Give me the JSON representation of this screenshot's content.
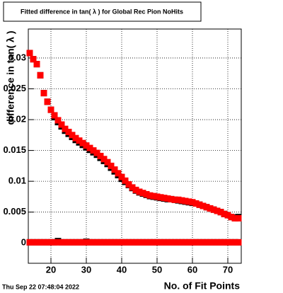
{
  "chart_data": {
    "type": "scatter",
    "title": "Fitted difference in tan( λ ) for Global Rec Pion NoHits",
    "x_label": "No. of Fit Points",
    "y_label": "difference in tan( λ )",
    "timestamp": "Thu Sep 22 07:48:04 2022",
    "grid": true,
    "xlim": [
      13.6,
      73.8
    ],
    "ylim": [
      -0.0033,
      0.0347
    ],
    "xticks": [
      20,
      30,
      40,
      50,
      60,
      70
    ],
    "yticks": [
      0,
      0.005,
      0.01,
      0.015,
      0.02,
      0.025,
      0.03
    ],
    "x": [
      14,
      15,
      16,
      17,
      18,
      19,
      20,
      21,
      22,
      23,
      24,
      25,
      26,
      27,
      28,
      29,
      30,
      31,
      32,
      33,
      34,
      35,
      36,
      37,
      38,
      39,
      40,
      41,
      42,
      43,
      44,
      45,
      46,
      47,
      48,
      49,
      50,
      51,
      52,
      53,
      54,
      55,
      56,
      57,
      58,
      59,
      60,
      61,
      62,
      63,
      64,
      65,
      66,
      67,
      68,
      69,
      70,
      71,
      72,
      73
    ],
    "series": [
      {
        "name": "black-upper",
        "color": "#000000",
        "values": [
          0.0308,
          0.0298,
          0.029,
          0.0272,
          0.0243,
          0.0229,
          0.0216,
          0.0204,
          0.0196,
          0.0189,
          0.0182,
          0.0177,
          0.0172,
          0.0167,
          0.0163,
          0.0159,
          0.0155,
          0.0151,
          0.0147,
          0.0143,
          0.0138,
          0.0133,
          0.0128,
          0.0122,
          0.0116,
          0.011,
          0.0104,
          0.0099,
          0.0094,
          0.0089,
          0.0085,
          0.0082,
          0.008,
          0.0078,
          0.0076,
          0.0075,
          0.0074,
          0.0073,
          0.0072,
          0.0071,
          0.0071,
          0.007,
          0.0069,
          0.0068,
          0.0067,
          0.0066,
          0.0065,
          0.0064,
          0.0062,
          0.006,
          0.0058,
          0.0056,
          0.0054,
          0.0052,
          0.005,
          0.0047,
          0.0045,
          0.0042,
          0.0041,
          0.0042
        ]
      },
      {
        "name": "black-zero",
        "color": "#000000",
        "values": [
          0.0001,
          0.0001,
          0.0001,
          0.0001,
          0.0001,
          0.0001,
          0.0001,
          0.0001,
          0.0003,
          0.0001,
          0.0001,
          0.0001,
          0.0001,
          0.0001,
          0.0001,
          0.0001,
          0.0002,
          0.0001,
          0.0001,
          0.0001,
          0.0001,
          0.0001,
          0.0001,
          0.0001,
          0.0001,
          0.0001,
          0.0001,
          0.0001,
          0.0001,
          0.0001,
          0.0001,
          0.0001,
          0.0001,
          0.0001,
          0.0001,
          0.0001,
          0.0001,
          0.0001,
          0.0001,
          0.0001,
          0.0001,
          0.0001,
          0.0001,
          0.0001,
          0.0001,
          0.0001,
          0.0001,
          0.0001,
          0.0001,
          0.0001,
          0.0001,
          0.0001,
          0.0001,
          0.0001,
          0.0001,
          0.0001,
          0.0001,
          0.0001,
          0.0001,
          0.0001
        ]
      },
      {
        "name": "red-upper",
        "color": "#ff0000",
        "values": [
          0.0308,
          0.0298,
          0.029,
          0.0272,
          0.0243,
          0.0229,
          0.0216,
          0.0207,
          0.0199,
          0.0192,
          0.0185,
          0.018,
          0.0175,
          0.017,
          0.0166,
          0.0162,
          0.0158,
          0.0154,
          0.015,
          0.0146,
          0.0141,
          0.0136,
          0.0131,
          0.0125,
          0.0119,
          0.0113,
          0.0107,
          0.0101,
          0.0095,
          0.009,
          0.0086,
          0.0083,
          0.0081,
          0.0079,
          0.0077,
          0.0076,
          0.0075,
          0.0074,
          0.0073,
          0.0072,
          0.0071,
          0.007,
          0.007,
          0.0069,
          0.0068,
          0.0067,
          0.0066,
          0.0064,
          0.0062,
          0.006,
          0.0058,
          0.0056,
          0.0054,
          0.0052,
          0.005,
          0.0047,
          0.0045,
          0.0042,
          0.004,
          0.004
        ]
      },
      {
        "name": "red-zero",
        "color": "#ff0000",
        "values": [
          0.0001,
          0.0001,
          0.0001,
          0.0001,
          0.0001,
          0.0001,
          0.0001,
          0.0001,
          0.0001,
          0.0001,
          0.0001,
          0.0001,
          0.0001,
          0.0001,
          0.0001,
          0.0001,
          0.0001,
          0.0001,
          0.0001,
          0.0001,
          0.0001,
          0.0001,
          0.0001,
          0.0001,
          0.0001,
          0.0001,
          0.0001,
          0.0001,
          0.0001,
          0.0001,
          0.0001,
          0.0001,
          0.0001,
          0.0001,
          0.0001,
          0.0001,
          0.0001,
          0.0001,
          0.0001,
          0.0001,
          0.0001,
          0.0001,
          0.0001,
          0.0001,
          0.0001,
          0.0001,
          0.0001,
          0.0001,
          0.0001,
          0.0001,
          0.0001,
          0.0001,
          0.0001,
          0.0001,
          0.0001,
          0.0001,
          0.0001,
          0.0001,
          0.0001,
          0.0001
        ]
      }
    ]
  }
}
